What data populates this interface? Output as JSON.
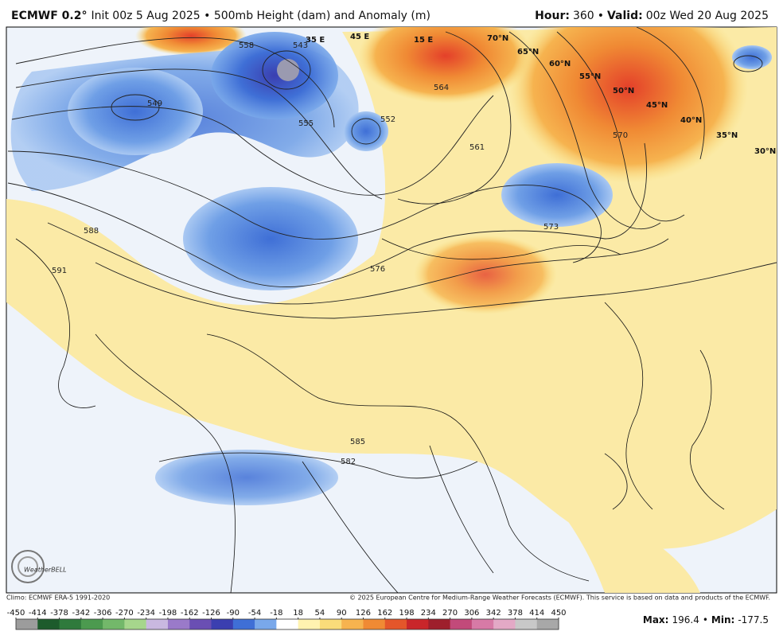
{
  "header": {
    "model": "ECMWF 0.2°",
    "description": "Init 00z 5 Aug 2025 • 500mb Height (dam) and Anomaly (m)",
    "hour_label": "Hour:",
    "hour": "360",
    "separator": "•",
    "valid_label": "Valid:",
    "valid": "00z Wed 20 Aug 2025"
  },
  "map": {
    "contour_labels": [
      "543",
      "552",
      "555",
      "549",
      "561",
      "564",
      "573",
      "576",
      "582",
      "585",
      "588",
      "591",
      "558",
      "570"
    ],
    "latitude_labels": [
      "70°N",
      "65°N",
      "60°N",
      "55°N",
      "50°N",
      "45°N",
      "40°N",
      "35°N",
      "30°N"
    ],
    "longitude_labels": [
      "35 E",
      "45 E",
      "15 E"
    ],
    "logo": "WeatherBELL"
  },
  "footer": {
    "climo": "Climo: ECMWF ERA-5 1991-2020",
    "copyright": "© 2025 European Centre for Medium-Range Weather Forecasts (ECMWF). This service is based on data and products of the ECMWF."
  },
  "colorbar": {
    "ticks": [
      -450,
      -414,
      -378,
      -342,
      -306,
      -270,
      -234,
      -198,
      -162,
      -126,
      -90,
      -54,
      -18,
      18,
      54,
      90,
      126,
      162,
      198,
      234,
      270,
      306,
      342,
      378,
      414,
      450
    ],
    "colors": [
      "#9c9c9c",
      "#1d5b2c",
      "#2f7a3c",
      "#4c9a4f",
      "#73b86a",
      "#a6d68c",
      "#c9b8e0",
      "#9a7ac9",
      "#6a4fb3",
      "#3b3fb0",
      "#3f6fd6",
      "#79a8ea",
      "#ffffff",
      "#fff3b0",
      "#f9dc7a",
      "#f6b34f",
      "#f08a34",
      "#e4562a",
      "#c9262a",
      "#9e1f2c",
      "#c24a7a",
      "#d77aa6",
      "#e3a9c6",
      "#c8c8c8",
      "#a8a8a8"
    ]
  },
  "stats": {
    "max_label": "Max:",
    "max": 196.4,
    "separator": "•",
    "min_label": "Min:",
    "min": -177.5
  }
}
